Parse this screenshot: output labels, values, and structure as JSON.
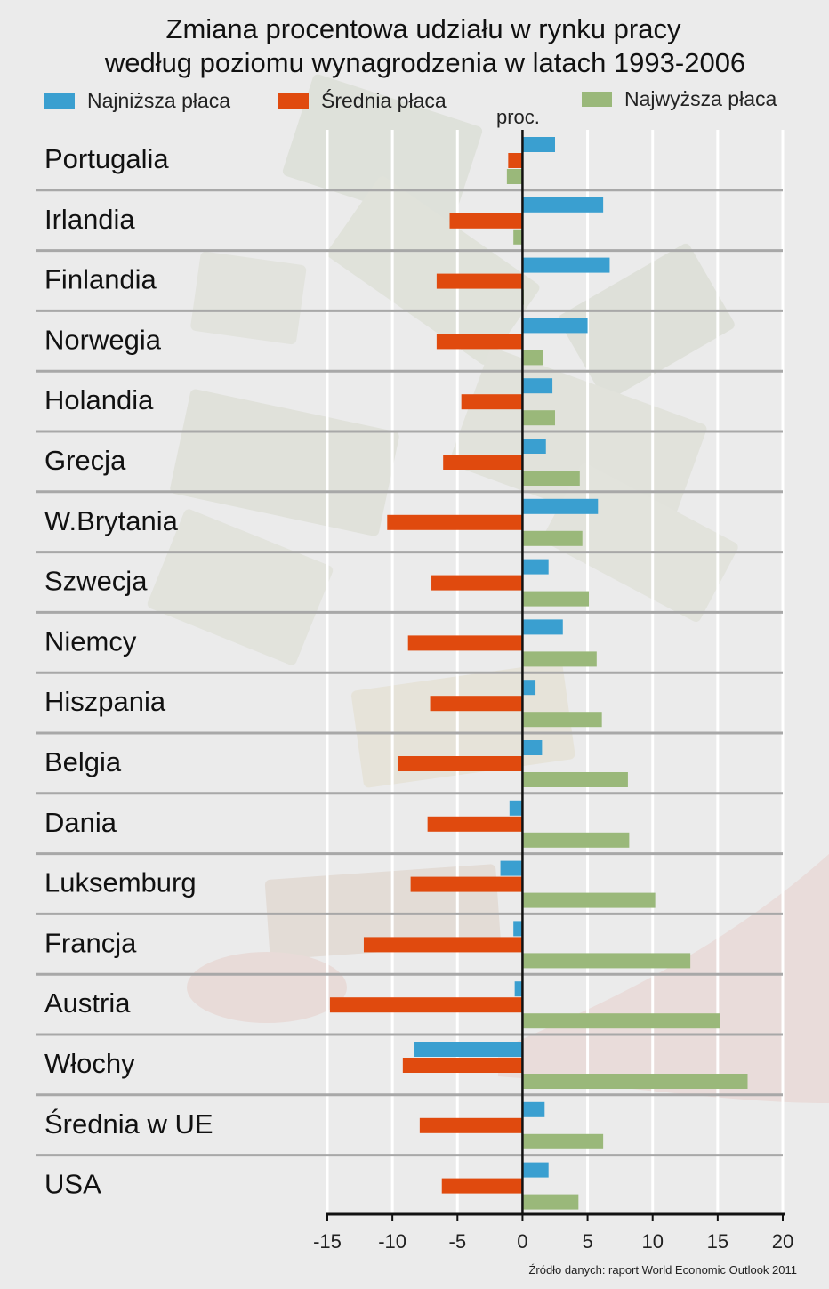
{
  "header": {
    "title_line1": "Zmiana procentowa udziału w rynku pracy",
    "title_line2": "według poziomu wynagrodzenia w latach 1993-2006",
    "unit": "proc.",
    "source": "Źródło danych: raport World Economic Outlook 2011"
  },
  "legend": [
    {
      "label": "Najniższa płaca",
      "color": "#3a9fd0"
    },
    {
      "label": "Średnia płaca",
      "color": "#e04a0e"
    },
    {
      "label": "Najwyższa płaca",
      "color": "#9ab87a"
    }
  ],
  "chart_data": {
    "type": "bar",
    "orientation": "horizontal",
    "title": "Zmiana procentowa udziału w rynku pracy według poziomu wynagrodzenia w latach 1993-2006",
    "xlabel": "proc.",
    "xlim": [
      -15,
      20
    ],
    "xticks": [
      -15,
      -10,
      -5,
      0,
      5,
      10,
      15,
      20
    ],
    "grid": "vertical",
    "legend_position": "top",
    "categories": [
      "Portugalia",
      "Irlandia",
      "Finlandia",
      "Norwegia",
      "Holandia",
      "Grecja",
      "W.Brytania",
      "Szwecja",
      "Niemcy",
      "Hiszpania",
      "Belgia",
      "Dania",
      "Luksemburg",
      "Francja",
      "Austria",
      "Włochy",
      "Średnia w UE",
      "USA"
    ],
    "series": [
      {
        "name": "Najniższa płaca",
        "color": "#3a9fd0",
        "values": [
          2.5,
          6.2,
          6.7,
          5.0,
          2.3,
          1.8,
          5.8,
          2.0,
          3.1,
          1.0,
          1.5,
          -1.0,
          -1.7,
          -0.7,
          -0.6,
          -8.3,
          1.7,
          2.0
        ]
      },
      {
        "name": "Średnia płaca",
        "color": "#e04a0e",
        "values": [
          -1.1,
          -5.6,
          -6.6,
          -6.6,
          -4.7,
          -6.1,
          -10.4,
          -7.0,
          -8.8,
          -7.1,
          -9.6,
          -7.3,
          -8.6,
          -12.2,
          -14.8,
          -9.2,
          -7.9,
          -6.2
        ]
      },
      {
        "name": "Najwyższa płaca",
        "color": "#9ab87a",
        "values": [
          -1.2,
          -0.7,
          0.0,
          1.6,
          2.5,
          4.4,
          4.6,
          5.1,
          5.7,
          6.1,
          8.1,
          8.2,
          10.2,
          12.9,
          15.2,
          17.3,
          6.2,
          4.3
        ]
      }
    ]
  }
}
